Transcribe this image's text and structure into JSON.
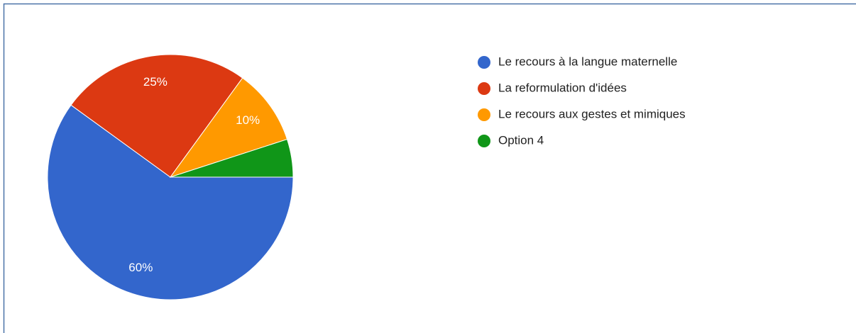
{
  "chart_data": {
    "type": "pie",
    "categories": [
      "Le recours à la langue maternelle",
      "La reformulation d'idées",
      "Le recours aux gestes et mimiques",
      "Option 4"
    ],
    "values": [
      60,
      25,
      10,
      5
    ],
    "value_labels": [
      "60%",
      "25%",
      "10%",
      null
    ],
    "colors": [
      "#3366cc",
      "#dc3912",
      "#ff9900",
      "#109618"
    ],
    "legend": "right"
  }
}
